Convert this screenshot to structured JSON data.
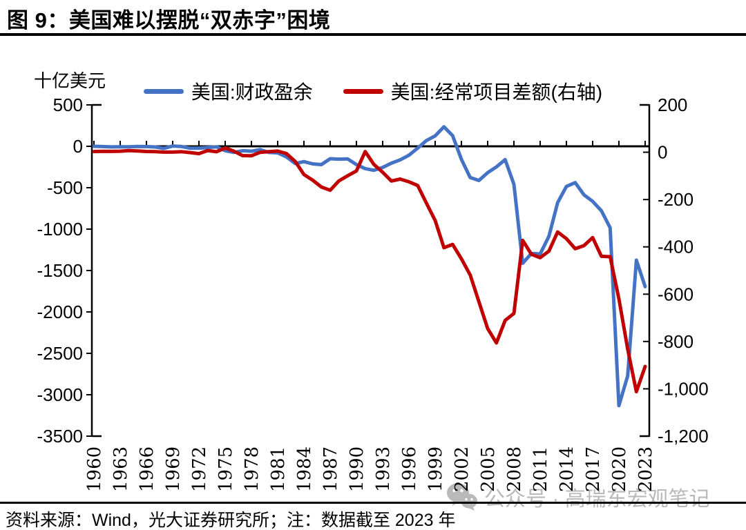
{
  "title": "图 9：美国难以摆脱“双赤字”困境",
  "unit_label": "十亿美元",
  "legend": [
    {
      "label": "美国:财政盈余",
      "color": "#4472C4"
    },
    {
      "label": "美国:经常项目差额(右轴)",
      "color": "#C00000"
    }
  ],
  "footer": {
    "source_note": "资料来源：Wind，光大证券研究所；注：数据截至 2023 年"
  },
  "watermark": {
    "text": "公众号 · 高瑞东宏观笔记",
    "color": "#b9b9b9"
  },
  "colors": {
    "fiscal_line": "#4472C4",
    "current_account_line": "#C00000",
    "axis": "#000000"
  },
  "chart_data": {
    "type": "line",
    "title": "图 9：美国难以摆脱“双赤字”困境",
    "unit": "十亿美元",
    "grid": false,
    "legend_position": "top",
    "x": [
      1960,
      1961,
      1962,
      1963,
      1964,
      1965,
      1966,
      1967,
      1968,
      1969,
      1970,
      1971,
      1972,
      1973,
      1974,
      1975,
      1976,
      1977,
      1978,
      1979,
      1980,
      1981,
      1982,
      1983,
      1984,
      1985,
      1986,
      1987,
      1988,
      1989,
      1990,
      1991,
      1992,
      1993,
      1994,
      1995,
      1996,
      1997,
      1998,
      1999,
      2000,
      2001,
      2002,
      2003,
      2004,
      2005,
      2006,
      2007,
      2008,
      2009,
      2010,
      2011,
      2012,
      2013,
      2014,
      2015,
      2016,
      2017,
      2018,
      2019,
      2020,
      2021,
      2022,
      2023
    ],
    "x_ticks": [
      1960,
      1963,
      1966,
      1969,
      1972,
      1975,
      1978,
      1981,
      1984,
      1987,
      1990,
      1993,
      1996,
      1999,
      2002,
      2005,
      2008,
      2011,
      2014,
      2017,
      2020,
      2023
    ],
    "left_axis": {
      "label": "十亿美元",
      "range": [
        500,
        -3500
      ],
      "ticks": [
        500,
        0,
        -500,
        -1000,
        -1500,
        -2000,
        -2500,
        -3000,
        -3500
      ]
    },
    "right_axis": {
      "range": [
        200,
        -1200
      ],
      "ticks": [
        200,
        0,
        -200,
        -400,
        -600,
        -800,
        -1000,
        -1200
      ]
    },
    "series": [
      {
        "name": "美国:财政盈余",
        "axis": "left",
        "color": "#4472C4",
        "values": [
          0.3,
          -3.3,
          -7.1,
          -4.8,
          -5.9,
          -1.4,
          -3.7,
          -8.6,
          -25.2,
          3.2,
          -2.8,
          -23.0,
          -23.4,
          -14.9,
          -6.1,
          -53.2,
          -73.7,
          -53.7,
          -59.2,
          -40.7,
          -73.8,
          -79.0,
          -128.0,
          -207.8,
          -185.4,
          -212.3,
          -221.2,
          -149.7,
          -155.2,
          -152.6,
          -221.0,
          -269.2,
          -290.3,
          -255.1,
          -203.2,
          -164.0,
          -107.4,
          -21.9,
          69.3,
          125.6,
          236.2,
          128.2,
          -157.8,
          -377.6,
          -412.7,
          -318.3,
          -248.2,
          -160.7,
          -458.6,
          -1412.7,
          -1294.4,
          -1299.6,
          -1087.0,
          -679.8,
          -484.8,
          -438.5,
          -584.7,
          -665.4,
          -779.1,
          -983.6,
          -3131.9,
          -2772.2,
          -1375.4,
          -1695.2
        ]
      },
      {
        "name": "美国:经常项目差额(右轴)",
        "axis": "right",
        "color": "#C00000",
        "values": [
          2.8,
          3.8,
          3.4,
          4.4,
          6.8,
          5.4,
          3.0,
          2.6,
          0.6,
          0.4,
          2.3,
          -1.4,
          -5.8,
          7.1,
          2.0,
          18.1,
          4.3,
          -14.3,
          -15.1,
          -0.3,
          2.3,
          5.0,
          -5.5,
          -38.7,
          -94.3,
          -118.2,
          -147.2,
          -160.7,
          -121.2,
          -99.5,
          -79.0,
          2.9,
          -51.6,
          -84.8,
          -121.6,
          -113.6,
          -124.8,
          -140.7,
          -215.1,
          -288.4,
          -403.5,
          -389.7,
          -450.8,
          -518.7,
          -631.6,
          -745.2,
          -805.9,
          -711.0,
          -681.4,
          -372.5,
          -431.3,
          -445.7,
          -418.1,
          -336.9,
          -365.2,
          -407.8,
          -394.9,
          -361.0,
          -439.9,
          -441.8,
          -619.7,
          -831.6,
          -1012.1,
          -905.4
        ]
      }
    ]
  }
}
